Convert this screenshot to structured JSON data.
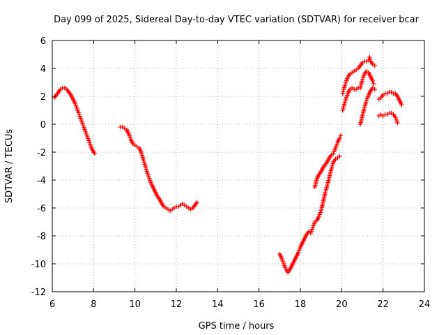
{
  "chart_data": {
    "type": "scatter",
    "title": "Day 099 of 2025, Sidereal Day-to-day VTEC variation (SDTVAR) for receiver bcar",
    "xlabel": "GPS time / hours",
    "ylabel": "SDTVAR / TECUs",
    "xlim": [
      6,
      24
    ],
    "ylim": [
      -12,
      6
    ],
    "xticks": [
      "6",
      "8",
      "10",
      "12",
      "14",
      "16",
      "18",
      "20",
      "22",
      "24"
    ],
    "yticks": [
      "6",
      "4",
      "2",
      "0",
      "-2",
      "-4",
      "-6",
      "-8",
      "-10",
      "-12"
    ],
    "grid": true,
    "marker": "+",
    "color": "#ff0000",
    "series": [
      {
        "name": "segment-1",
        "points": [
          [
            6.1,
            1.9
          ],
          [
            6.2,
            2.1
          ],
          [
            6.3,
            2.3
          ],
          [
            6.4,
            2.5
          ],
          [
            6.5,
            2.6
          ],
          [
            6.6,
            2.6
          ],
          [
            6.7,
            2.5
          ],
          [
            6.8,
            2.3
          ],
          [
            6.9,
            2.1
          ],
          [
            7.0,
            1.8
          ],
          [
            7.1,
            1.5
          ],
          [
            7.2,
            1.1
          ],
          [
            7.3,
            0.7
          ],
          [
            7.4,
            0.3
          ],
          [
            7.5,
            -0.1
          ],
          [
            7.6,
            -0.5
          ],
          [
            7.7,
            -0.9
          ],
          [
            7.8,
            -1.3
          ],
          [
            7.9,
            -1.7
          ],
          [
            8.0,
            -2.0
          ],
          [
            8.05,
            -2.1
          ]
        ]
      },
      {
        "name": "segment-2",
        "points": [
          [
            9.3,
            -0.2
          ],
          [
            9.4,
            -0.2
          ],
          [
            9.5,
            -0.3
          ],
          [
            9.6,
            -0.4
          ],
          [
            9.7,
            -0.7
          ],
          [
            9.8,
            -1.1
          ],
          [
            9.9,
            -1.4
          ],
          [
            10.0,
            -1.5
          ],
          [
            10.1,
            -1.6
          ],
          [
            10.2,
            -1.7
          ],
          [
            10.3,
            -2.0
          ],
          [
            10.4,
            -2.5
          ],
          [
            10.5,
            -3.0
          ],
          [
            10.6,
            -3.5
          ],
          [
            10.7,
            -3.9
          ],
          [
            10.8,
            -4.3
          ],
          [
            10.9,
            -4.6
          ],
          [
            11.0,
            -4.9
          ],
          [
            11.1,
            -5.2
          ],
          [
            11.2,
            -5.4
          ],
          [
            11.3,
            -5.7
          ],
          [
            11.4,
            -5.9
          ],
          [
            11.5,
            -6.0
          ],
          [
            11.6,
            -6.1
          ],
          [
            11.7,
            -6.2
          ],
          [
            11.8,
            -6.1
          ],
          [
            11.9,
            -6.0
          ],
          [
            12.0,
            -5.9
          ],
          [
            12.1,
            -5.9
          ],
          [
            12.2,
            -5.8
          ],
          [
            12.3,
            -5.7
          ],
          [
            12.4,
            -5.8
          ],
          [
            12.5,
            -5.9
          ],
          [
            12.6,
            -6.0
          ],
          [
            12.7,
            -6.1
          ],
          [
            12.8,
            -6.0
          ],
          [
            12.9,
            -5.8
          ],
          [
            13.0,
            -5.6
          ]
        ]
      },
      {
        "name": "segment-3",
        "points": [
          [
            17.0,
            -9.3
          ],
          [
            17.1,
            -9.6
          ],
          [
            17.2,
            -10.0
          ],
          [
            17.3,
            -10.4
          ],
          [
            17.4,
            -10.6
          ],
          [
            17.5,
            -10.4
          ],
          [
            17.6,
            -10.1
          ],
          [
            17.7,
            -9.8
          ],
          [
            17.8,
            -9.5
          ],
          [
            17.9,
            -9.2
          ],
          [
            18.0,
            -8.8
          ],
          [
            18.1,
            -8.5
          ],
          [
            18.2,
            -8.2
          ],
          [
            18.3,
            -7.9
          ],
          [
            18.4,
            -7.7
          ],
          [
            18.5,
            -7.8
          ],
          [
            18.6,
            -7.4
          ],
          [
            18.7,
            -7.0
          ],
          [
            18.8,
            -6.9
          ],
          [
            18.9,
            -6.6
          ],
          [
            19.0,
            -6.2
          ],
          [
            19.1,
            -5.6
          ],
          [
            19.2,
            -4.9
          ],
          [
            19.3,
            -4.4
          ],
          [
            19.4,
            -3.8
          ],
          [
            19.5,
            -3.2
          ],
          [
            19.6,
            -2.7
          ],
          [
            19.7,
            -2.5
          ],
          [
            19.8,
            -2.4
          ],
          [
            19.9,
            -2.3
          ]
        ]
      },
      {
        "name": "segment-4",
        "points": [
          [
            18.7,
            -4.5
          ],
          [
            18.8,
            -3.9
          ],
          [
            18.9,
            -3.6
          ],
          [
            19.0,
            -3.4
          ],
          [
            19.1,
            -3.1
          ],
          [
            19.2,
            -2.9
          ],
          [
            19.3,
            -2.7
          ],
          [
            19.4,
            -2.4
          ],
          [
            19.5,
            -2.2
          ],
          [
            19.6,
            -2.1
          ],
          [
            19.7,
            -1.7
          ],
          [
            19.8,
            -1.3
          ],
          [
            19.9,
            -1.0
          ],
          [
            19.95,
            -0.8
          ]
        ]
      },
      {
        "name": "segment-5",
        "points": [
          [
            20.05,
            2.2
          ],
          [
            20.1,
            2.5
          ],
          [
            20.2,
            3.0
          ],
          [
            20.3,
            3.4
          ],
          [
            20.4,
            3.6
          ],
          [
            20.5,
            3.7
          ],
          [
            20.6,
            3.8
          ],
          [
            20.7,
            3.9
          ],
          [
            20.8,
            4.0
          ],
          [
            20.9,
            4.2
          ],
          [
            21.0,
            4.4
          ],
          [
            21.1,
            4.5
          ],
          [
            21.2,
            4.5
          ],
          [
            21.3,
            4.6
          ],
          [
            21.35,
            4.8
          ],
          [
            21.4,
            4.5
          ],
          [
            21.5,
            4.3
          ],
          [
            21.6,
            4.2
          ]
        ]
      },
      {
        "name": "segment-6",
        "points": [
          [
            20.05,
            1.0
          ],
          [
            20.1,
            1.3
          ],
          [
            20.2,
            1.8
          ],
          [
            20.3,
            2.2
          ],
          [
            20.4,
            2.5
          ],
          [
            20.5,
            2.6
          ],
          [
            20.6,
            2.5
          ],
          [
            20.7,
            2.5
          ],
          [
            20.8,
            2.6
          ],
          [
            20.9,
            2.6
          ],
          [
            21.0,
            3.2
          ],
          [
            21.1,
            3.6
          ],
          [
            21.2,
            3.8
          ],
          [
            21.3,
            3.7
          ],
          [
            21.4,
            3.4
          ],
          [
            21.5,
            3.1
          ],
          [
            21.55,
            2.9
          ]
        ]
      },
      {
        "name": "segment-7",
        "points": [
          [
            20.9,
            0.0
          ],
          [
            21.0,
            0.6
          ],
          [
            21.1,
            1.2
          ],
          [
            21.2,
            1.7
          ],
          [
            21.3,
            2.1
          ],
          [
            21.4,
            2.4
          ],
          [
            21.5,
            2.6
          ],
          [
            21.6,
            2.5
          ]
        ]
      },
      {
        "name": "segment-8",
        "points": [
          [
            21.8,
            1.8
          ],
          [
            21.9,
            1.9
          ],
          [
            22.0,
            2.1
          ],
          [
            22.1,
            2.2
          ],
          [
            22.2,
            2.2
          ],
          [
            22.3,
            2.3
          ],
          [
            22.4,
            2.3
          ],
          [
            22.5,
            2.2
          ],
          [
            22.6,
            2.2
          ],
          [
            22.7,
            2.0
          ],
          [
            22.8,
            1.7
          ],
          [
            22.9,
            1.4
          ]
        ]
      },
      {
        "name": "segment-9",
        "points": [
          [
            21.8,
            0.6
          ],
          [
            21.9,
            0.7
          ],
          [
            22.0,
            0.6
          ],
          [
            22.1,
            0.7
          ],
          [
            22.2,
            0.7
          ],
          [
            22.3,
            0.8
          ],
          [
            22.4,
            0.8
          ],
          [
            22.5,
            0.7
          ],
          [
            22.6,
            0.5
          ],
          [
            22.7,
            0.1
          ]
        ]
      }
    ]
  }
}
